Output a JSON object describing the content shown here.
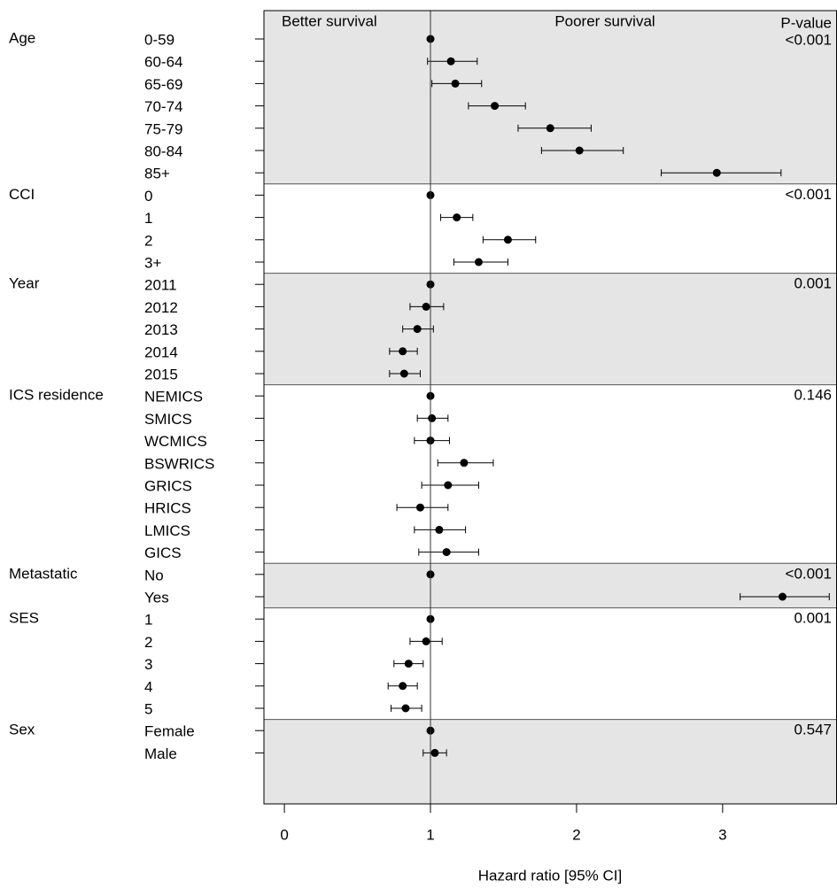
{
  "chart_data": {
    "type": "forest",
    "xlabel": "Hazard ratio [95% CI]",
    "left_header": "Better survival",
    "right_header": "Poorer survival",
    "p_header": "P-value",
    "xlim": [
      -0.14,
      3.78
    ],
    "xticks": [
      0,
      1,
      2,
      3
    ],
    "reference": 1,
    "band_color": "#e5e5e5",
    "groups": [
      {
        "name": "Age",
        "p_value": "<0.001",
        "levels": [
          "0-59",
          "60-64",
          "65-69",
          "70-74",
          "75-79",
          "80-84",
          "85+"
        ],
        "values": [
          1,
          1.14,
          1.17,
          1.44,
          1.82,
          2.02,
          2.96
        ],
        "lower": [
          null,
          0.98,
          1.01,
          1.26,
          1.6,
          1.76,
          2.58
        ],
        "upper": [
          null,
          1.32,
          1.35,
          1.65,
          2.1,
          2.32,
          3.4
        ]
      },
      {
        "name": "CCI",
        "p_value": "<0.001",
        "levels": [
          "0",
          "1",
          "2",
          "3+"
        ],
        "values": [
          1,
          1.18,
          1.53,
          1.33
        ],
        "lower": [
          null,
          1.07,
          1.36,
          1.16
        ],
        "upper": [
          null,
          1.29,
          1.72,
          1.53
        ]
      },
      {
        "name": "Year",
        "p_value": "0.001",
        "levels": [
          "2011",
          "2012",
          "2013",
          "2014",
          "2015"
        ],
        "values": [
          1,
          0.97,
          0.91,
          0.81,
          0.82
        ],
        "lower": [
          null,
          0.86,
          0.81,
          0.72,
          0.72
        ],
        "upper": [
          null,
          1.09,
          1.02,
          0.91,
          0.93
        ]
      },
      {
        "name": "ICS residence",
        "p_value": "0.146",
        "levels": [
          "NEMICS",
          "SMICS",
          "WCMICS",
          "BSWRICS",
          "GRICS",
          "HRICS",
          "LMICS",
          "GICS"
        ],
        "values": [
          1,
          1.01,
          1.0,
          1.23,
          1.12,
          0.93,
          1.06,
          1.11
        ],
        "lower": [
          null,
          0.91,
          0.89,
          1.05,
          0.94,
          0.77,
          0.89,
          0.92
        ],
        "upper": [
          null,
          1.12,
          1.13,
          1.43,
          1.33,
          1.12,
          1.24,
          1.33
        ]
      },
      {
        "name": "Metastatic",
        "p_value": "<0.001",
        "levels": [
          "No",
          "Yes"
        ],
        "values": [
          1,
          3.41
        ],
        "lower": [
          null,
          3.12
        ],
        "upper": [
          null,
          3.73
        ]
      },
      {
        "name": "SES",
        "p_value": "0.001",
        "levels": [
          "1",
          "2",
          "3",
          "4",
          "5"
        ],
        "values": [
          1,
          0.97,
          0.85,
          0.81,
          0.83
        ],
        "lower": [
          null,
          0.86,
          0.75,
          0.71,
          0.73
        ],
        "upper": [
          null,
          1.08,
          0.95,
          0.91,
          0.94
        ]
      },
      {
        "name": "Sex",
        "p_value": "0.547",
        "levels": [
          "Female",
          "Male"
        ],
        "values": [
          1,
          1.03
        ],
        "lower": [
          null,
          0.95
        ],
        "upper": [
          null,
          1.11
        ]
      }
    ]
  }
}
